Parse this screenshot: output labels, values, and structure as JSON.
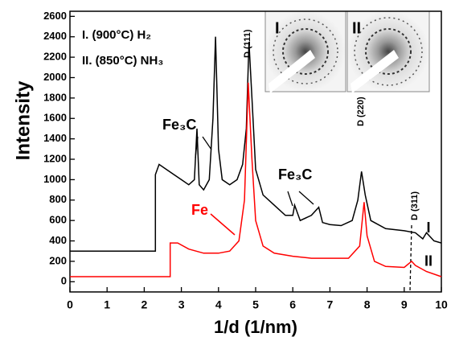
{
  "chart_data": {
    "type": "line",
    "xlabel": "1/d (1/nm)",
    "ylabel": "Intensity",
    "xlim": [
      0,
      10
    ],
    "ylim": [
      -100,
      2650
    ],
    "xticks": [
      0,
      1,
      2,
      3,
      4,
      5,
      6,
      7,
      8,
      9,
      10
    ],
    "yticks": [
      0,
      200,
      400,
      600,
      800,
      1000,
      1200,
      1400,
      1600,
      1800,
      2000,
      2200,
      2400,
      2600
    ],
    "series": [
      {
        "name": "I",
        "color": "#000000",
        "x": [
          0,
          2.3,
          2.3,
          2.4,
          2.6,
          2.8,
          3.0,
          3.2,
          3.35,
          3.42,
          3.48,
          3.6,
          3.75,
          3.85,
          3.92,
          4.0,
          4.1,
          4.3,
          4.5,
          4.65,
          4.75,
          4.82,
          4.9,
          5.0,
          5.2,
          5.5,
          5.8,
          6.0,
          6.05,
          6.2,
          6.5,
          6.7,
          6.8,
          7.0,
          7.3,
          7.6,
          7.75,
          7.85,
          7.95,
          8.1,
          8.5,
          9.0,
          9.3,
          9.5,
          9.6,
          9.8,
          10
        ],
        "values": [
          300,
          300,
          1050,
          1150,
          1100,
          1050,
          1000,
          950,
          1000,
          1500,
          950,
          900,
          1000,
          1600,
          2400,
          1300,
          1000,
          950,
          1000,
          1150,
          1500,
          2350,
          1800,
          1100,
          850,
          750,
          650,
          650,
          750,
          600,
          650,
          730,
          580,
          560,
          550,
          600,
          800,
          1080,
          850,
          600,
          520,
          500,
          480,
          420,
          480,
          400,
          380
        ]
      },
      {
        "name": "II",
        "color": "#ff0000",
        "x": [
          0,
          2.7,
          2.7,
          2.9,
          3.2,
          3.6,
          4.0,
          4.3,
          4.55,
          4.7,
          4.8,
          4.9,
          5.0,
          5.2,
          5.5,
          6.0,
          6.5,
          7.0,
          7.5,
          7.8,
          7.92,
          8.0,
          8.2,
          8.5,
          9.0,
          9.2,
          9.3,
          9.6,
          10
        ],
        "values": [
          50,
          50,
          380,
          380,
          320,
          280,
          280,
          300,
          400,
          800,
          1950,
          1200,
          600,
          350,
          280,
          250,
          230,
          230,
          230,
          350,
          780,
          450,
          200,
          150,
          140,
          200,
          160,
          100,
          50
        ]
      }
    ],
    "annotations": [
      "I.  (900°C) H₂",
      "II.  (850°C) NH₃",
      "Fe₃C",
      "Fe₃C",
      "Fe",
      "D (111)",
      "D (220)",
      "D (311)"
    ],
    "inset_labels": [
      "I",
      "II"
    ]
  }
}
